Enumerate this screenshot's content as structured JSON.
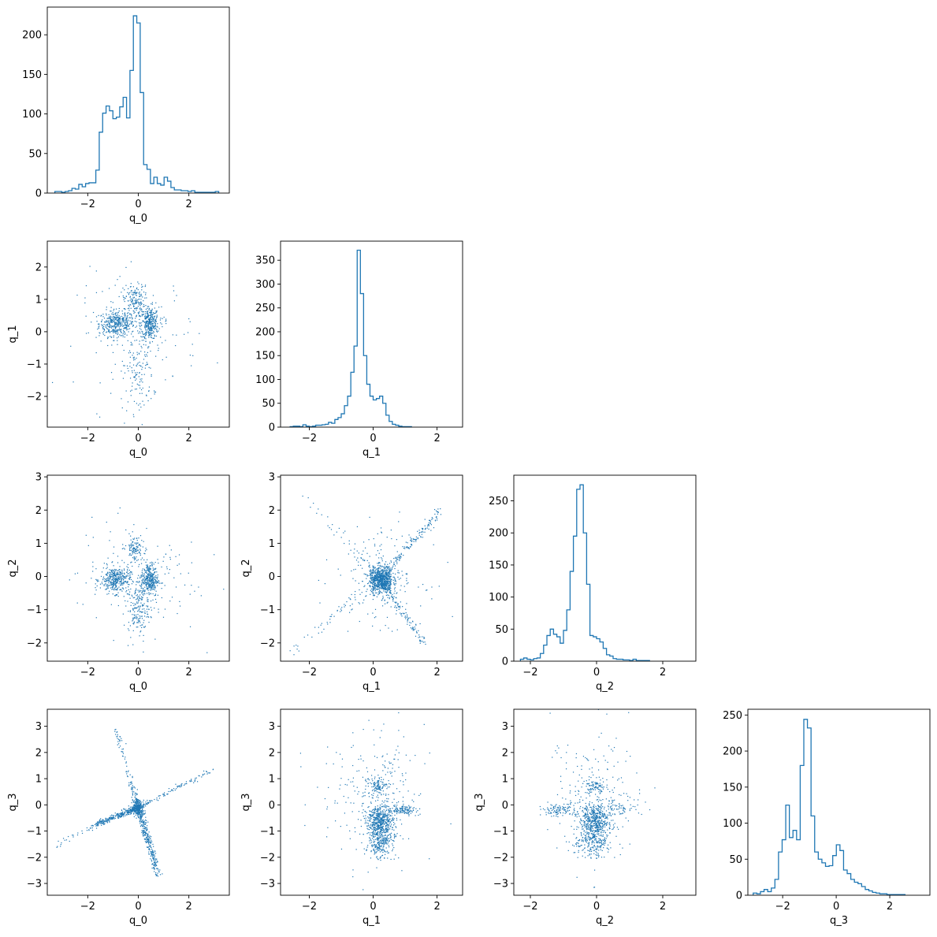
{
  "chart_data": {
    "type": "corner",
    "variables": [
      "q_0",
      "q_1",
      "q_2",
      "q_3"
    ],
    "color": "#1f77b4",
    "axes_color": "#000000",
    "panels": [
      {
        "type": "histogram",
        "row": 0,
        "col": 0,
        "xlabel": "q_0",
        "xlim": [
          -3.6,
          3.6
        ],
        "ylim": [
          0,
          235
        ],
        "xticks": [
          -2,
          0,
          2
        ],
        "xtick_labels": [
          "−2",
          "0",
          "2"
        ],
        "yticks": [
          0,
          50,
          100,
          150,
          200
        ],
        "ytick_labels": [
          "0",
          "50",
          "100",
          "150",
          "200"
        ],
        "bin_start": -3.3,
        "bin_width": 0.135,
        "counts": [
          2,
          2,
          1,
          2,
          3,
          6,
          5,
          11,
          8,
          12,
          13,
          13,
          29,
          77,
          101,
          110,
          104,
          94,
          96,
          109,
          121,
          95,
          155,
          224,
          215,
          127,
          36,
          30,
          12,
          20,
          12,
          10,
          20,
          15,
          7,
          4,
          4,
          3,
          3,
          2,
          3,
          1,
          1,
          1,
          1,
          1,
          1,
          2
        ]
      },
      {
        "type": "histogram",
        "row": 1,
        "col": 1,
        "xlabel": "q_1",
        "xlim": [
          -2.9,
          2.8
        ],
        "ylim": [
          0,
          390
        ],
        "xticks": [
          -2,
          0,
          2
        ],
        "xtick_labels": [
          "−2",
          "0",
          "2"
        ],
        "yticks": [
          0,
          50,
          100,
          150,
          200,
          250,
          300,
          350
        ],
        "ytick_labels": [
          "0",
          "50",
          "100",
          "150",
          "200",
          "250",
          "300",
          "350"
        ],
        "bin_start": -2.6,
        "bin_width": 0.1,
        "counts": [
          1,
          2,
          2,
          1,
          5,
          2,
          1,
          2,
          4,
          4,
          5,
          6,
          10,
          8,
          16,
          20,
          28,
          45,
          65,
          115,
          170,
          371,
          280,
          150,
          90,
          65,
          57,
          60,
          65,
          50,
          25,
          12,
          6,
          4,
          2,
          1,
          1,
          1
        ]
      },
      {
        "type": "histogram",
        "row": 2,
        "col": 2,
        "xlabel": "q_2",
        "xlim": [
          -2.5,
          3.0
        ],
        "ylim": [
          0,
          290
        ],
        "xticks": [
          -2,
          0,
          2
        ],
        "xtick_labels": [
          "−2",
          "0",
          "2"
        ],
        "yticks": [
          0,
          50,
          100,
          150,
          200,
          250
        ],
        "ytick_labels": [
          "0",
          "50",
          "100",
          "150",
          "200",
          "250"
        ],
        "bin_start": -2.3,
        "bin_width": 0.1,
        "counts": [
          3,
          5,
          3,
          2,
          4,
          5,
          12,
          25,
          40,
          50,
          42,
          38,
          28,
          48,
          80,
          140,
          195,
          268,
          275,
          200,
          120,
          40,
          38,
          35,
          30,
          20,
          10,
          8,
          4,
          3,
          3,
          2,
          2,
          1,
          3,
          1,
          1,
          1,
          1
        ]
      },
      {
        "type": "histogram",
        "row": 3,
        "col": 3,
        "xlabel": "q_3",
        "xlim": [
          -3.3,
          3.5
        ],
        "ylim": [
          0,
          258
        ],
        "xticks": [
          -2,
          0,
          2
        ],
        "xtick_labels": [
          "−2",
          "0",
          "2"
        ],
        "yticks": [
          0,
          50,
          100,
          150,
          200,
          250
        ],
        "ytick_labels": [
          "0",
          "50",
          "100",
          "150",
          "200",
          "250"
        ],
        "bin_start": -3.1,
        "bin_width": 0.135,
        "counts": [
          3,
          2,
          5,
          8,
          5,
          10,
          22,
          60,
          77,
          125,
          80,
          90,
          77,
          180,
          244,
          232,
          110,
          60,
          50,
          45,
          40,
          41,
          55,
          70,
          62,
          35,
          30,
          22,
          18,
          16,
          12,
          8,
          6,
          4,
          3,
          2,
          2,
          1,
          1,
          1,
          1,
          1
        ]
      },
      {
        "type": "scatter",
        "row": 1,
        "col": 0,
        "xlabel": "q_0",
        "ylabel": "q_1",
        "xlim": [
          -3.6,
          3.6
        ],
        "ylim": [
          -2.95,
          2.8
        ],
        "xticks": [
          -2,
          0,
          2
        ],
        "xtick_labels": [
          "−2",
          "0",
          "2"
        ],
        "yticks": [
          -2,
          -1,
          0,
          1,
          2
        ],
        "ytick_labels": [
          "−2",
          "−1",
          "0",
          "1",
          "2"
        ],
        "clusters": [
          {
            "cx": -0.85,
            "cy": 0.25,
            "sx": 0.35,
            "sy": 0.2,
            "n": 380
          },
          {
            "cx": 0.45,
            "cy": 0.25,
            "sx": 0.18,
            "sy": 0.25,
            "n": 330
          },
          {
            "cx": -0.15,
            "cy": 0.95,
            "sx": 0.2,
            "sy": 0.25,
            "n": 150
          },
          {
            "cx": 0.0,
            "cy": -1.3,
            "sx": 0.3,
            "sy": 0.6,
            "n": 120
          },
          {
            "cx": 0.0,
            "cy": 0.0,
            "sx": 1.2,
            "sy": 0.9,
            "n": 160
          }
        ]
      },
      {
        "type": "scatter",
        "row": 2,
        "col": 0,
        "xlabel": "q_0",
        "ylabel": "q_2",
        "xlim": [
          -3.6,
          3.6
        ],
        "ylim": [
          -2.55,
          3.05
        ],
        "xticks": [
          -2,
          0,
          2
        ],
        "xtick_labels": [
          "−2",
          "0",
          "2"
        ],
        "yticks": [
          -2,
          -1,
          0,
          1,
          2,
          3
        ],
        "ytick_labels": [
          "−2",
          "−1",
          "0",
          "1",
          "2",
          "3"
        ],
        "clusters": [
          {
            "cx": -0.9,
            "cy": -0.1,
            "sx": 0.3,
            "sy": 0.2,
            "n": 370
          },
          {
            "cx": 0.45,
            "cy": -0.1,
            "sx": 0.17,
            "sy": 0.25,
            "n": 330
          },
          {
            "cx": -0.15,
            "cy": 0.85,
            "sx": 0.15,
            "sy": 0.2,
            "n": 100
          },
          {
            "cx": 0.0,
            "cy": -1.0,
            "sx": 0.2,
            "sy": 0.35,
            "n": 160
          },
          {
            "cx": 0.0,
            "cy": 0.0,
            "sx": 1.2,
            "sy": 0.9,
            "n": 160
          }
        ]
      },
      {
        "type": "scatter",
        "row": 2,
        "col": 1,
        "xlabel": "q_1",
        "ylabel": "q_2",
        "xlim": [
          -2.9,
          2.8
        ],
        "ylim": [
          -2.55,
          3.05
        ],
        "xticks": [
          -2,
          0,
          2
        ],
        "xtick_labels": [
          "−2",
          "0",
          "2"
        ],
        "yticks": [
          -2,
          -1,
          0,
          1,
          2,
          3
        ],
        "ytick_labels": [
          "−2",
          "−1",
          "0",
          "1",
          "2",
          "3"
        ],
        "clusters": [
          {
            "cx": 0.25,
            "cy": -0.1,
            "sx": 0.18,
            "sy": 0.2,
            "n": 700
          },
          {
            "cx": 0.25,
            "cy": 0.0,
            "sx": 0.7,
            "sy": 0.7,
            "n": 200
          }
        ],
        "lines": [
          {
            "x0": 0.2,
            "y0": -0.1,
            "x1": 2.1,
            "y1": 2.0,
            "n": 170,
            "spread": 0.06
          },
          {
            "x0": 0.2,
            "y0": -0.1,
            "x1": 1.6,
            "y1": -2.0,
            "n": 130,
            "spread": 0.06
          },
          {
            "x0": 0.2,
            "y0": -0.1,
            "x1": -2.3,
            "y1": 2.5,
            "n": 50,
            "spread": 0.08
          },
          {
            "x0": 0.2,
            "y0": -0.1,
            "x1": -2.6,
            "y1": -2.3,
            "n": 50,
            "spread": 0.08
          }
        ]
      },
      {
        "type": "scatter",
        "row": 3,
        "col": 0,
        "xlabel": "q_0",
        "ylabel": "q_3",
        "xlim": [
          -3.6,
          3.6
        ],
        "ylim": [
          -3.45,
          3.65
        ],
        "xticks": [
          -2,
          0,
          2
        ],
        "xtick_labels": [
          "−2",
          "0",
          "2"
        ],
        "yticks": [
          -3,
          -2,
          -1,
          0,
          1,
          2,
          3
        ],
        "ytick_labels": [
          "−3",
          "−2",
          "−1",
          "0",
          "1",
          "2",
          "3"
        ],
        "clusters": [
          {
            "cx": 0.0,
            "cy": -0.1,
            "sx": 0.12,
            "sy": 0.15,
            "n": 180
          }
        ],
        "lines": [
          {
            "x0": 0.0,
            "y0": -0.1,
            "x1": -1.8,
            "y1": -0.8,
            "n": 320,
            "spread": 0.06
          },
          {
            "x0": 0.0,
            "y0": -0.1,
            "x1": 0.8,
            "y1": -2.7,
            "n": 330,
            "spread": 0.07
          },
          {
            "x0": 0.0,
            "y0": -0.1,
            "x1": -0.9,
            "y1": 2.9,
            "n": 110,
            "spread": 0.06
          },
          {
            "x0": 0.0,
            "y0": -0.1,
            "x1": 3.1,
            "y1": 1.4,
            "n": 110,
            "spread": 0.05
          },
          {
            "x0": -1.8,
            "y0": -0.8,
            "x1": -3.3,
            "y1": -1.6,
            "n": 25,
            "spread": 0.05
          }
        ]
      },
      {
        "type": "scatter",
        "row": 3,
        "col": 1,
        "xlabel": "q_1",
        "ylabel": "q_3",
        "xlim": [
          -2.9,
          2.8
        ],
        "ylim": [
          -3.45,
          3.65
        ],
        "xticks": [
          -2,
          0,
          2
        ],
        "xtick_labels": [
          "−2",
          "0",
          "2"
        ],
        "yticks": [
          -3,
          -2,
          -1,
          0,
          1,
          2,
          3
        ],
        "ytick_labels": [
          "−3",
          "−2",
          "−1",
          "0",
          "1",
          "2",
          "3"
        ],
        "clusters": [
          {
            "cx": 0.2,
            "cy": -0.6,
            "sx": 0.2,
            "sy": 0.3,
            "n": 450
          },
          {
            "cx": 0.25,
            "cy": -1.4,
            "sx": 0.2,
            "sy": 0.3,
            "n": 250
          },
          {
            "cx": 0.9,
            "cy": -0.2,
            "sx": 0.22,
            "sy": 0.1,
            "n": 120
          },
          {
            "cx": 0.2,
            "cy": 0.7,
            "sx": 0.12,
            "sy": 0.15,
            "n": 80
          },
          {
            "cx": 0.1,
            "cy": 0.3,
            "sx": 0.6,
            "sy": 1.3,
            "n": 200
          },
          {
            "cx": 0.0,
            "cy": 0.0,
            "sx": 1.0,
            "sy": 1.0,
            "n": 80
          }
        ]
      },
      {
        "type": "scatter",
        "row": 3,
        "col": 2,
        "xlabel": "q_2",
        "ylabel": "q_3",
        "xlim": [
          -2.5,
          3.0
        ],
        "ylim": [
          -3.45,
          3.65
        ],
        "xticks": [
          -2,
          0,
          2
        ],
        "xtick_labels": [
          "−2",
          "0",
          "2"
        ],
        "yticks": [
          -3,
          -2,
          -1,
          0,
          1,
          2,
          3
        ],
        "ytick_labels": [
          "−3",
          "−2",
          "−1",
          "0",
          "1",
          "2",
          "3"
        ],
        "clusters": [
          {
            "cx": -0.05,
            "cy": -0.6,
            "sx": 0.2,
            "sy": 0.3,
            "n": 430
          },
          {
            "cx": -0.1,
            "cy": -1.4,
            "sx": 0.25,
            "sy": 0.3,
            "n": 230
          },
          {
            "cx": -1.1,
            "cy": -0.2,
            "sx": 0.3,
            "sy": 0.12,
            "n": 110
          },
          {
            "cx": 0.6,
            "cy": -0.1,
            "sx": 0.35,
            "sy": 0.15,
            "n": 80
          },
          {
            "cx": -0.05,
            "cy": 0.7,
            "sx": 0.15,
            "sy": 0.15,
            "n": 70
          },
          {
            "cx": 0.0,
            "cy": 0.3,
            "sx": 0.7,
            "sy": 1.3,
            "n": 220
          }
        ]
      }
    ]
  }
}
